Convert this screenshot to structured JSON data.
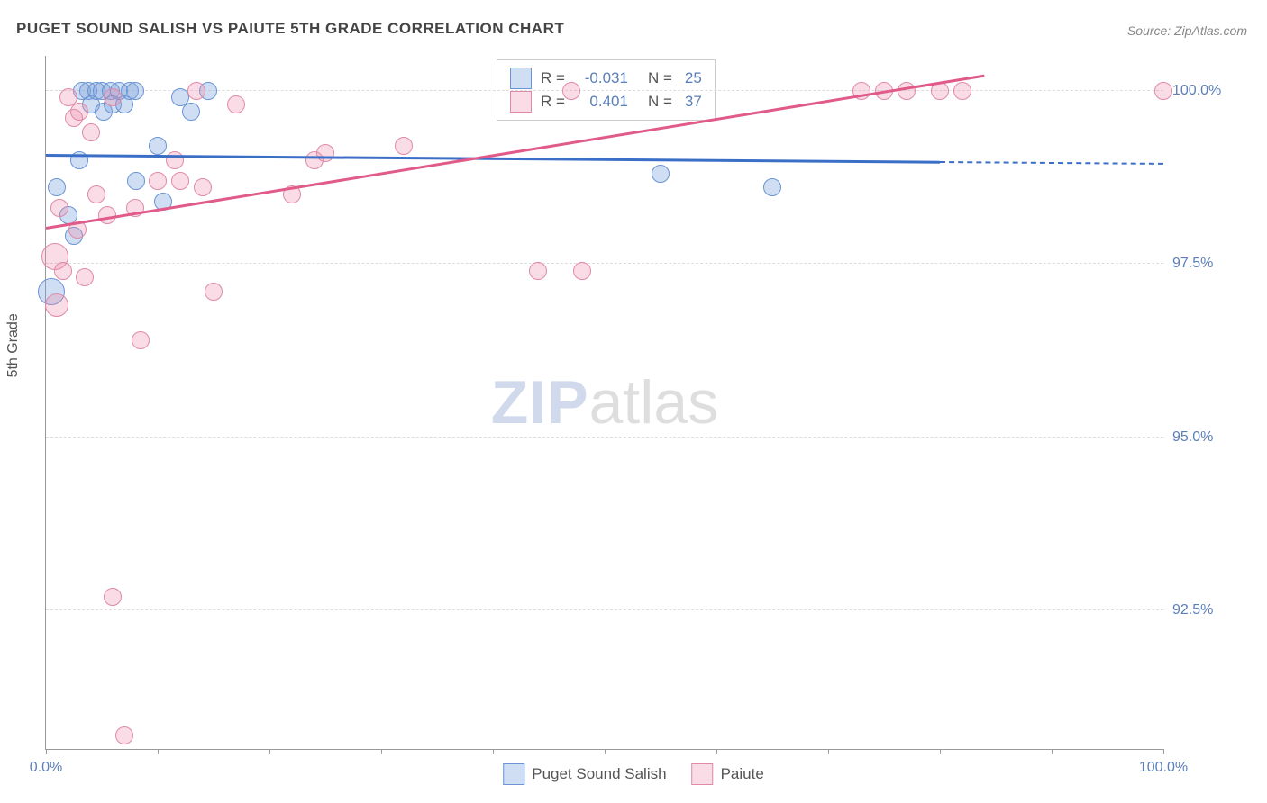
{
  "title": "PUGET SOUND SALISH VS PAIUTE 5TH GRADE CORRELATION CHART",
  "source": "Source: ZipAtlas.com",
  "y_axis_label": "5th Grade",
  "watermark_a": "ZIP",
  "watermark_b": "atlas",
  "chart": {
    "type": "scatter",
    "xlim": [
      0,
      100
    ],
    "ylim": [
      90.5,
      100.5
    ],
    "x_ticks": [
      0,
      10,
      20,
      30,
      40,
      50,
      60,
      70,
      80,
      90,
      100
    ],
    "x_tick_labels": {
      "0": "0.0%",
      "100": "100.0%"
    },
    "y_gridlines": [
      92.5,
      95.0,
      97.5,
      100.0
    ],
    "y_tick_labels": {
      "92.5": "92.5%",
      "95.0": "95.0%",
      "97.5": "97.5%",
      "100.0": "100.0%"
    },
    "background_color": "#ffffff",
    "grid_color": "#dddddd",
    "axis_color": "#999999",
    "tick_label_color": "#5b7fb8",
    "series": [
      {
        "name": "Puget Sound Salish",
        "fill": "rgba(120,160,220,0.35)",
        "stroke": "#6a94d4",
        "line_color": "#3b6fc7",
        "R": "-0.031",
        "N": "25",
        "trend": {
          "x1": 0,
          "y1": 99.05,
          "x2": 80,
          "y2": 98.95,
          "dash_to_x": 100
        },
        "points": [
          {
            "x": 0.5,
            "y": 97.1,
            "r": 14
          },
          {
            "x": 1.0,
            "y": 98.6,
            "r": 9
          },
          {
            "x": 2.0,
            "y": 98.2,
            "r": 9
          },
          {
            "x": 2.5,
            "y": 97.9,
            "r": 9
          },
          {
            "x": 3.0,
            "y": 99.0,
            "r": 9
          },
          {
            "x": 3.2,
            "y": 100.0,
            "r": 9
          },
          {
            "x": 3.8,
            "y": 100.0,
            "r": 9
          },
          {
            "x": 4.0,
            "y": 99.8,
            "r": 9
          },
          {
            "x": 4.5,
            "y": 100.0,
            "r": 9
          },
          {
            "x": 5.0,
            "y": 100.0,
            "r": 9
          },
          {
            "x": 5.2,
            "y": 99.7,
            "r": 9
          },
          {
            "x": 5.8,
            "y": 100.0,
            "r": 9
          },
          {
            "x": 6.0,
            "y": 99.8,
            "r": 9
          },
          {
            "x": 6.5,
            "y": 100.0,
            "r": 9
          },
          {
            "x": 7.0,
            "y": 99.8,
            "r": 9
          },
          {
            "x": 7.5,
            "y": 100.0,
            "r": 9
          },
          {
            "x": 8.0,
            "y": 100.0,
            "r": 9
          },
          {
            "x": 8.1,
            "y": 98.7,
            "r": 9
          },
          {
            "x": 10.0,
            "y": 99.2,
            "r": 9
          },
          {
            "x": 10.5,
            "y": 98.4,
            "r": 9
          },
          {
            "x": 12.0,
            "y": 99.9,
            "r": 9
          },
          {
            "x": 13.0,
            "y": 99.7,
            "r": 9
          },
          {
            "x": 14.5,
            "y": 100.0,
            "r": 9
          },
          {
            "x": 55.0,
            "y": 98.8,
            "r": 9
          },
          {
            "x": 65.0,
            "y": 98.6,
            "r": 9
          }
        ]
      },
      {
        "name": "Paiute",
        "fill": "rgba(235,140,170,0.30)",
        "stroke": "#e08aa8",
        "line_color": "#e05a8a",
        "R": "0.401",
        "N": "37",
        "trend": {
          "x1": 0,
          "y1": 98.0,
          "x2": 84,
          "y2": 100.2
        },
        "points": [
          {
            "x": 0.8,
            "y": 97.6,
            "r": 14
          },
          {
            "x": 1.0,
            "y": 96.9,
            "r": 12
          },
          {
            "x": 1.2,
            "y": 98.3,
            "r": 9
          },
          {
            "x": 1.5,
            "y": 97.4,
            "r": 9
          },
          {
            "x": 2.0,
            "y": 99.9,
            "r": 9
          },
          {
            "x": 2.5,
            "y": 99.6,
            "r": 9
          },
          {
            "x": 2.8,
            "y": 98.0,
            "r": 9
          },
          {
            "x": 3.0,
            "y": 99.7,
            "r": 9
          },
          {
            "x": 3.5,
            "y": 97.3,
            "r": 9
          },
          {
            "x": 4.0,
            "y": 99.4,
            "r": 9
          },
          {
            "x": 4.5,
            "y": 98.5,
            "r": 9
          },
          {
            "x": 5.5,
            "y": 98.2,
            "r": 9
          },
          {
            "x": 6.0,
            "y": 99.9,
            "r": 9
          },
          {
            "x": 6.0,
            "y": 92.7,
            "r": 9
          },
          {
            "x": 7.0,
            "y": 90.7,
            "r": 9
          },
          {
            "x": 8.0,
            "y": 98.3,
            "r": 9
          },
          {
            "x": 8.5,
            "y": 96.4,
            "r": 9
          },
          {
            "x": 10.0,
            "y": 98.7,
            "r": 9
          },
          {
            "x": 11.5,
            "y": 99.0,
            "r": 9
          },
          {
            "x": 12.0,
            "y": 98.7,
            "r": 9
          },
          {
            "x": 13.5,
            "y": 100.0,
            "r": 9
          },
          {
            "x": 14.0,
            "y": 98.6,
            "r": 9
          },
          {
            "x": 15.0,
            "y": 97.1,
            "r": 9
          },
          {
            "x": 17.0,
            "y": 99.8,
            "r": 9
          },
          {
            "x": 22.0,
            "y": 98.5,
            "r": 9
          },
          {
            "x": 24.0,
            "y": 99.0,
            "r": 9
          },
          {
            "x": 25.0,
            "y": 99.1,
            "r": 9
          },
          {
            "x": 32.0,
            "y": 99.2,
            "r": 9
          },
          {
            "x": 44.0,
            "y": 97.4,
            "r": 9
          },
          {
            "x": 47.0,
            "y": 100.0,
            "r": 9
          },
          {
            "x": 48.0,
            "y": 97.4,
            "r": 9
          },
          {
            "x": 73.0,
            "y": 100.0,
            "r": 9
          },
          {
            "x": 75.0,
            "y": 100.0,
            "r": 9
          },
          {
            "x": 77.0,
            "y": 100.0,
            "r": 9
          },
          {
            "x": 80.0,
            "y": 100.0,
            "r": 9
          },
          {
            "x": 82.0,
            "y": 100.0,
            "r": 9
          },
          {
            "x": 100.0,
            "y": 100.0,
            "r": 9
          }
        ]
      }
    ]
  },
  "legend_top": {
    "rows": [
      {
        "swatch_fill": "rgba(120,160,220,0.35)",
        "swatch_stroke": "#6a94d4",
        "r_label": "R =",
        "r_val": "-0.031",
        "n_label": "N =",
        "n_val": "25"
      },
      {
        "swatch_fill": "rgba(235,140,170,0.30)",
        "swatch_stroke": "#e08aa8",
        "r_label": "R =",
        "r_val": "0.401",
        "n_label": "N =",
        "n_val": "37"
      }
    ]
  },
  "legend_bottom": [
    {
      "swatch_fill": "rgba(120,160,220,0.35)",
      "swatch_stroke": "#6a94d4",
      "label": "Puget Sound Salish"
    },
    {
      "swatch_fill": "rgba(235,140,170,0.30)",
      "swatch_stroke": "#e08aa8",
      "label": "Paiute"
    }
  ]
}
